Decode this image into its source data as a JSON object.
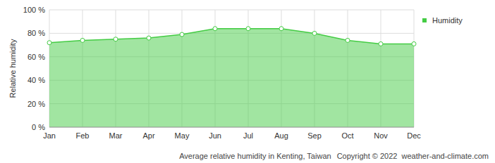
{
  "chart_data": {
    "type": "area",
    "title": "Average relative humidity in Kenting, Taiwan",
    "annotations": [
      "Copyright © 2022  weather-and-climate.com"
    ],
    "y_label": "Relative humidity",
    "categories": [
      "Jan",
      "Feb",
      "Mar",
      "Apr",
      "May",
      "Jun",
      "Jul",
      "Aug",
      "Sep",
      "Oct",
      "Nov",
      "Dec"
    ],
    "series": [
      {
        "name": "Humidity",
        "color": "#44cc44",
        "marker": "circle",
        "values": [
          72,
          74,
          75,
          76,
          79,
          84,
          84,
          84,
          80,
          74,
          71,
          71
        ]
      }
    ],
    "ylim": [
      0,
      100
    ],
    "yticks": [
      {
        "value": 0,
        "label": "0 %"
      },
      {
        "value": 20,
        "label": "20 %"
      },
      {
        "value": 40,
        "label": "40 %"
      },
      {
        "value": 60,
        "label": "60 %"
      },
      {
        "value": 80,
        "label": "80 %"
      },
      {
        "value": 100,
        "label": "100 %"
      }
    ],
    "grid": true,
    "legend": "top-right"
  }
}
